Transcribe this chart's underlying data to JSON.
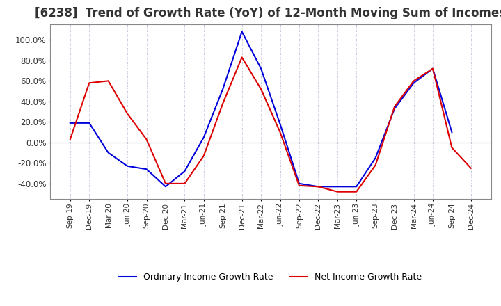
{
  "title": "[6238]  Trend of Growth Rate (YoY) of 12-Month Moving Sum of Incomes",
  "title_fontsize": 12,
  "ylim": [
    -55,
    115
  ],
  "yticks": [
    -40,
    -20,
    0,
    20,
    40,
    60,
    80,
    100
  ],
  "background_color": "#ffffff",
  "plot_bg_color": "#ffffff",
  "grid_color": "#aaaacc",
  "ordinary_color": "#0000dd",
  "net_color": "#dd0000",
  "x_labels": [
    "Sep-19",
    "Dec-19",
    "Mar-20",
    "Jun-20",
    "Sep-20",
    "Dec-20",
    "Mar-21",
    "Jun-21",
    "Sep-21",
    "Dec-21",
    "Mar-22",
    "Jun-22",
    "Sep-22",
    "Dec-22",
    "Mar-23",
    "Jun-23",
    "Sep-23",
    "Dec-23",
    "Mar-24",
    "Jun-24",
    "Sep-24",
    "Dec-24"
  ],
  "ordinary_income_growth": [
    19,
    19,
    -10,
    -23,
    -26,
    -43,
    -28,
    5,
    52,
    108,
    72,
    18,
    -40,
    -43,
    -43,
    -43,
    -15,
    33,
    58,
    72,
    10,
    null
  ],
  "net_income_growth": [
    3,
    58,
    60,
    28,
    3,
    -40,
    -40,
    -13,
    38,
    83,
    52,
    10,
    -42,
    -43,
    -48,
    -48,
    -22,
    35,
    60,
    72,
    -5,
    -25
  ],
  "legend_labels": [
    "Ordinary Income Growth Rate",
    "Net Income Growth Rate"
  ]
}
